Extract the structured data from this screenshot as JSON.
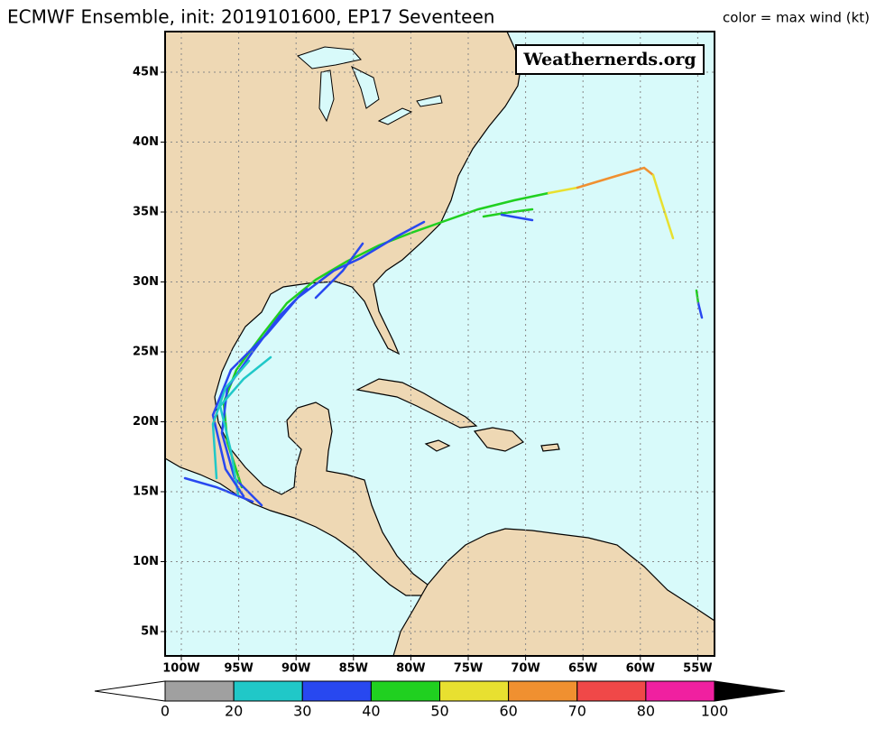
{
  "header": {
    "title": "ECMWF Ensemble, init: 2019101600, EP17 Seventeen",
    "legend_note": "color = max wind (kt)"
  },
  "map": {
    "watermark": "Weathernerds.org",
    "lat_labels": [
      "45N",
      "40N",
      "35N",
      "30N",
      "25N",
      "20N",
      "15N",
      "10N",
      "5N"
    ],
    "lon_labels": [
      "100W",
      "95W",
      "90W",
      "85W",
      "80W",
      "75W",
      "70W",
      "65W",
      "60W",
      "55W"
    ]
  },
  "colorbar": {
    "labels": [
      0,
      20,
      30,
      40,
      50,
      60,
      70,
      80,
      100
    ],
    "colors": [
      "#a0a0a0",
      "#20c8c8",
      "#2848f0",
      "#20d020",
      "#e8e030",
      "#f09030",
      "#f04848",
      "#f020a0"
    ]
  }
}
